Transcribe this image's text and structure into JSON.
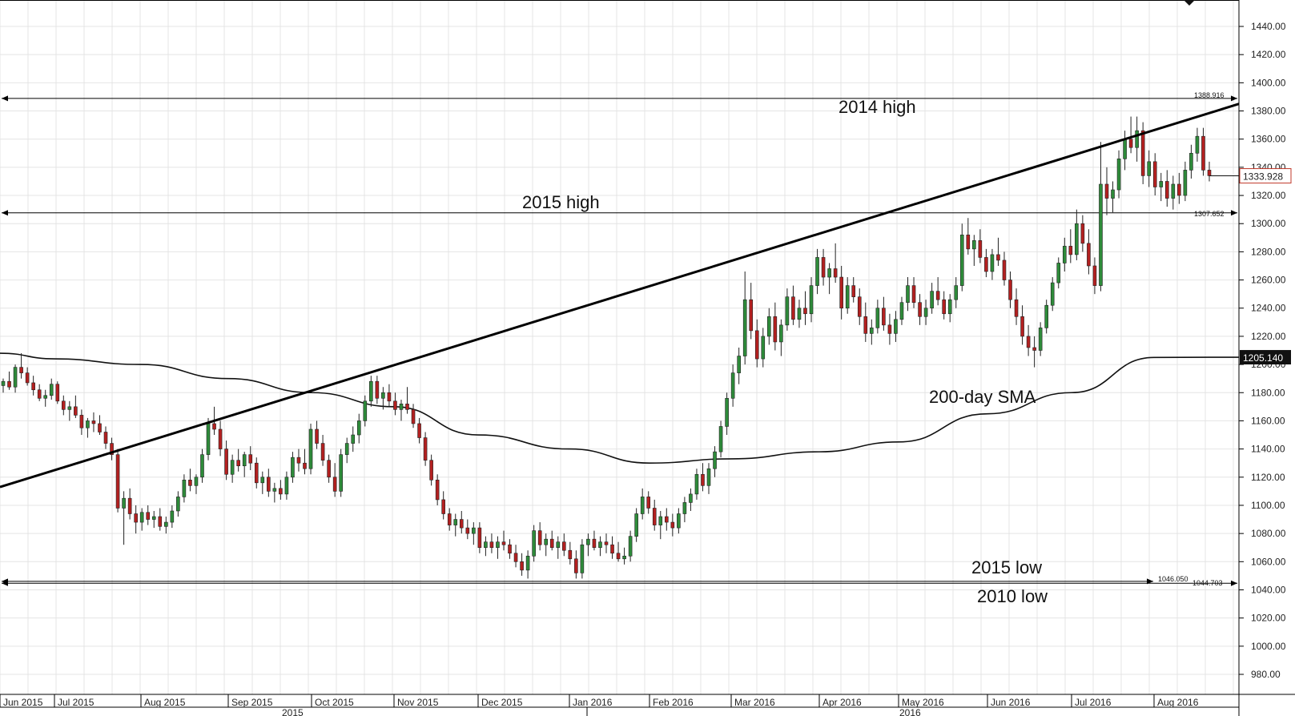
{
  "chart_data": {
    "type": "candlestick",
    "y_axis": {
      "range": [
        965,
        1455
      ],
      "ticks": [
        "980.00",
        "1000.00",
        "1020.00",
        "1040.00",
        "1060.00",
        "1080.00",
        "1100.00",
        "1120.00",
        "1140.00",
        "1160.00",
        "1180.00",
        "1200.00",
        "1220.00",
        "1240.00",
        "1260.00",
        "1280.00",
        "1300.00",
        "1320.00",
        "1340.00",
        "1360.00",
        "1380.00",
        "1400.00",
        "1420.00",
        "1440.00"
      ],
      "position": "right"
    },
    "x_axis": {
      "months": [
        "Jun 2015",
        "Jul 2015",
        "Aug 2015",
        "Sep 2015",
        "Oct 2015",
        "Nov 2015",
        "Dec 2015",
        "Jan 2016",
        "Feb 2016",
        "Mar 2016",
        "Apr 2016",
        "May 2016",
        "Jun 2016",
        "Jul 2016",
        "Aug 2016"
      ],
      "years": [
        "2015",
        "2016"
      ]
    },
    "grid": true,
    "horizontal_levels": [
      {
        "value": 1388.916,
        "label": "1388.916"
      },
      {
        "value": 1307.652,
        "label": "1307.652"
      },
      {
        "value": 1046.05,
        "label": "1046.050"
      },
      {
        "value": 1044.703,
        "label": "1044.703"
      }
    ],
    "last_price": {
      "value": 1333.928,
      "label": "1333.928"
    },
    "sma": {
      "name": "200-day SMA",
      "last_value": 1205.14,
      "last_label": "1205.140",
      "points": [
        [
          "Jun 2015",
          1208
        ],
        [
          "Jul 2015",
          1204
        ],
        [
          "Aug 2015",
          1200
        ],
        [
          "Sep 2015",
          1190
        ],
        [
          "Oct 2015",
          1180
        ],
        [
          "Nov 2015",
          1170
        ],
        [
          "Dec 2015",
          1150
        ],
        [
          "Jan 2016",
          1140
        ],
        [
          "Feb 2016",
          1130
        ],
        [
          "Mar 2016",
          1133
        ],
        [
          "Apr 2016",
          1138
        ],
        [
          "May 2016",
          1145
        ],
        [
          "Jun 2016",
          1165
        ],
        [
          "Jul 2016",
          1180
        ],
        [
          "Aug 2016",
          1205
        ]
      ]
    },
    "trendline": {
      "from": [
        "Jun 2015",
        1113
      ],
      "to": [
        "Aug 2016",
        1385
      ]
    },
    "annotations": [
      {
        "text": "2014 high"
      },
      {
        "text": "2015 high"
      },
      {
        "text": "200-day SMA"
      },
      {
        "text": "2015 low"
      },
      {
        "text": "2010 low"
      }
    ],
    "candles": [
      [
        1185,
        1190,
        1180,
        1188
      ],
      [
        1188,
        1195,
        1182,
        1184
      ],
      [
        1184,
        1200,
        1180,
        1198
      ],
      [
        1198,
        1208,
        1190,
        1194
      ],
      [
        1194,
        1198,
        1185,
        1187
      ],
      [
        1187,
        1192,
        1178,
        1182
      ],
      [
        1182,
        1186,
        1174,
        1176
      ],
      [
        1176,
        1182,
        1170,
        1178
      ],
      [
        1178,
        1190,
        1175,
        1186
      ],
      [
        1186,
        1188,
        1172,
        1174
      ],
      [
        1174,
        1178,
        1164,
        1168
      ],
      [
        1168,
        1174,
        1160,
        1170
      ],
      [
        1170,
        1178,
        1162,
        1164
      ],
      [
        1164,
        1168,
        1150,
        1155
      ],
      [
        1155,
        1162,
        1148,
        1160
      ],
      [
        1160,
        1166,
        1152,
        1158
      ],
      [
        1158,
        1164,
        1150,
        1152
      ],
      [
        1152,
        1156,
        1140,
        1144
      ],
      [
        1144,
        1148,
        1132,
        1136
      ],
      [
        1136,
        1140,
        1095,
        1098
      ],
      [
        1098,
        1110,
        1072,
        1105
      ],
      [
        1105,
        1112,
        1090,
        1094
      ],
      [
        1094,
        1100,
        1080,
        1088
      ],
      [
        1088,
        1098,
        1082,
        1095
      ],
      [
        1095,
        1100,
        1086,
        1090
      ],
      [
        1090,
        1096,
        1084,
        1092
      ],
      [
        1092,
        1098,
        1082,
        1085
      ],
      [
        1085,
        1092,
        1080,
        1088
      ],
      [
        1088,
        1100,
        1084,
        1096
      ],
      [
        1096,
        1110,
        1092,
        1106
      ],
      [
        1106,
        1122,
        1102,
        1118
      ],
      [
        1118,
        1126,
        1110,
        1114
      ],
      [
        1114,
        1122,
        1108,
        1120
      ],
      [
        1120,
        1140,
        1116,
        1136
      ],
      [
        1136,
        1162,
        1132,
        1158
      ],
      [
        1158,
        1170,
        1150,
        1154
      ],
      [
        1154,
        1160,
        1135,
        1140
      ],
      [
        1140,
        1146,
        1118,
        1122
      ],
      [
        1122,
        1136,
        1116,
        1132
      ],
      [
        1132,
        1140,
        1124,
        1128
      ],
      [
        1128,
        1138,
        1120,
        1136
      ],
      [
        1136,
        1142,
        1125,
        1130
      ],
      [
        1130,
        1134,
        1112,
        1116
      ],
      [
        1116,
        1124,
        1108,
        1120
      ],
      [
        1120,
        1126,
        1106,
        1110
      ],
      [
        1110,
        1116,
        1102,
        1112
      ],
      [
        1112,
        1118,
        1104,
        1108
      ],
      [
        1108,
        1124,
        1104,
        1120
      ],
      [
        1120,
        1138,
        1116,
        1134
      ],
      [
        1134,
        1140,
        1124,
        1130
      ],
      [
        1130,
        1140,
        1122,
        1126
      ],
      [
        1126,
        1158,
        1122,
        1154
      ],
      [
        1154,
        1160,
        1140,
        1144
      ],
      [
        1144,
        1150,
        1128,
        1132
      ],
      [
        1132,
        1136,
        1116,
        1120
      ],
      [
        1120,
        1130,
        1106,
        1110
      ],
      [
        1110,
        1140,
        1106,
        1136
      ],
      [
        1136,
        1148,
        1130,
        1144
      ],
      [
        1144,
        1156,
        1138,
        1150
      ],
      [
        1150,
        1165,
        1144,
        1160
      ],
      [
        1160,
        1178,
        1156,
        1174
      ],
      [
        1174,
        1192,
        1170,
        1188
      ],
      [
        1188,
        1192,
        1172,
        1176
      ],
      [
        1176,
        1184,
        1168,
        1180
      ],
      [
        1180,
        1186,
        1170,
        1174
      ],
      [
        1174,
        1180,
        1164,
        1168
      ],
      [
        1168,
        1175,
        1160,
        1172
      ],
      [
        1172,
        1184,
        1165,
        1168
      ],
      [
        1168,
        1172,
        1155,
        1158
      ],
      [
        1158,
        1162,
        1144,
        1148
      ],
      [
        1148,
        1152,
        1128,
        1132
      ],
      [
        1132,
        1136,
        1114,
        1118
      ],
      [
        1118,
        1122,
        1100,
        1104
      ],
      [
        1104,
        1110,
        1090,
        1094
      ],
      [
        1094,
        1098,
        1082,
        1086
      ],
      [
        1086,
        1094,
        1078,
        1090
      ],
      [
        1090,
        1096,
        1080,
        1084
      ],
      [
        1084,
        1090,
        1076,
        1080
      ],
      [
        1080,
        1088,
        1072,
        1084
      ],
      [
        1084,
        1088,
        1066,
        1070
      ],
      [
        1070,
        1078,
        1064,
        1074
      ],
      [
        1074,
        1080,
        1066,
        1070
      ],
      [
        1070,
        1078,
        1062,
        1074
      ],
      [
        1074,
        1082,
        1068,
        1072
      ],
      [
        1072,
        1076,
        1062,
        1066
      ],
      [
        1066,
        1072,
        1056,
        1060
      ],
      [
        1060,
        1066,
        1050,
        1054
      ],
      [
        1054,
        1068,
        1048,
        1064
      ],
      [
        1064,
        1086,
        1060,
        1082
      ],
      [
        1082,
        1088,
        1068,
        1072
      ],
      [
        1072,
        1080,
        1064,
        1076
      ],
      [
        1076,
        1082,
        1068,
        1070
      ],
      [
        1070,
        1078,
        1062,
        1074
      ],
      [
        1074,
        1080,
        1064,
        1068
      ],
      [
        1068,
        1074,
        1058,
        1062
      ],
      [
        1062,
        1068,
        1048,
        1052
      ],
      [
        1052,
        1076,
        1048,
        1072
      ],
      [
        1072,
        1080,
        1064,
        1076
      ],
      [
        1076,
        1082,
        1068,
        1070
      ],
      [
        1070,
        1078,
        1064,
        1074
      ],
      [
        1074,
        1080,
        1066,
        1072
      ],
      [
        1072,
        1078,
        1062,
        1066
      ],
      [
        1066,
        1074,
        1060,
        1062
      ],
      [
        1062,
        1070,
        1058,
        1064
      ],
      [
        1064,
        1082,
        1060,
        1078
      ],
      [
        1078,
        1098,
        1074,
        1094
      ],
      [
        1094,
        1112,
        1090,
        1106
      ],
      [
        1106,
        1110,
        1094,
        1098
      ],
      [
        1098,
        1104,
        1082,
        1086
      ],
      [
        1086,
        1096,
        1076,
        1092
      ],
      [
        1092,
        1098,
        1082,
        1088
      ],
      [
        1088,
        1094,
        1078,
        1084
      ],
      [
        1084,
        1098,
        1080,
        1094
      ],
      [
        1094,
        1106,
        1088,
        1102
      ],
      [
        1102,
        1112,
        1096,
        1108
      ],
      [
        1108,
        1126,
        1104,
        1122
      ],
      [
        1122,
        1130,
        1110,
        1114
      ],
      [
        1114,
        1130,
        1108,
        1126
      ],
      [
        1126,
        1142,
        1120,
        1138
      ],
      [
        1138,
        1160,
        1134,
        1156
      ],
      [
        1156,
        1180,
        1150,
        1176
      ],
      [
        1176,
        1200,
        1170,
        1194
      ],
      [
        1194,
        1212,
        1186,
        1206
      ],
      [
        1206,
        1266,
        1200,
        1246
      ],
      [
        1246,
        1258,
        1218,
        1224
      ],
      [
        1224,
        1232,
        1198,
        1204
      ],
      [
        1204,
        1226,
        1198,
        1220
      ],
      [
        1220,
        1240,
        1214,
        1234
      ],
      [
        1234,
        1244,
        1210,
        1216
      ],
      [
        1216,
        1232,
        1206,
        1228
      ],
      [
        1228,
        1254,
        1224,
        1248
      ],
      [
        1248,
        1256,
        1228,
        1232
      ],
      [
        1232,
        1246,
        1226,
        1240
      ],
      [
        1240,
        1252,
        1228,
        1236
      ],
      [
        1236,
        1262,
        1230,
        1256
      ],
      [
        1256,
        1282,
        1250,
        1276
      ],
      [
        1276,
        1282,
        1256,
        1262
      ],
      [
        1262,
        1272,
        1250,
        1268
      ],
      [
        1268,
        1286,
        1258,
        1262
      ],
      [
        1262,
        1270,
        1232,
        1240
      ],
      [
        1240,
        1262,
        1236,
        1256
      ],
      [
        1256,
        1262,
        1244,
        1248
      ],
      [
        1248,
        1254,
        1228,
        1234
      ],
      [
        1234,
        1244,
        1216,
        1222
      ],
      [
        1222,
        1232,
        1214,
        1226
      ],
      [
        1226,
        1246,
        1222,
        1240
      ],
      [
        1240,
        1248,
        1224,
        1228
      ],
      [
        1228,
        1236,
        1214,
        1222
      ],
      [
        1222,
        1238,
        1216,
        1232
      ],
      [
        1232,
        1248,
        1228,
        1244
      ],
      [
        1244,
        1262,
        1238,
        1256
      ],
      [
        1256,
        1262,
        1240,
        1244
      ],
      [
        1244,
        1250,
        1228,
        1234
      ],
      [
        1234,
        1246,
        1228,
        1240
      ],
      [
        1240,
        1258,
        1236,
        1252
      ],
      [
        1252,
        1262,
        1242,
        1246
      ],
      [
        1246,
        1252,
        1232,
        1236
      ],
      [
        1236,
        1250,
        1230,
        1246
      ],
      [
        1246,
        1262,
        1240,
        1256
      ],
      [
        1256,
        1300,
        1252,
        1292
      ],
      [
        1292,
        1304,
        1278,
        1282
      ],
      [
        1282,
        1292,
        1270,
        1288
      ],
      [
        1288,
        1296,
        1272,
        1276
      ],
      [
        1276,
        1282,
        1262,
        1266
      ],
      [
        1266,
        1282,
        1260,
        1278
      ],
      [
        1278,
        1290,
        1270,
        1274
      ],
      [
        1274,
        1280,
        1256,
        1260
      ],
      [
        1260,
        1266,
        1240,
        1246
      ],
      [
        1246,
        1254,
        1228,
        1234
      ],
      [
        1234,
        1242,
        1214,
        1220
      ],
      [
        1220,
        1228,
        1206,
        1212
      ],
      [
        1212,
        1220,
        1198,
        1210
      ],
      [
        1210,
        1230,
        1206,
        1226
      ],
      [
        1226,
        1246,
        1222,
        1242
      ],
      [
        1242,
        1262,
        1238,
        1258
      ],
      [
        1258,
        1276,
        1254,
        1272
      ],
      [
        1272,
        1290,
        1266,
        1284
      ],
      [
        1284,
        1296,
        1272,
        1278
      ],
      [
        1278,
        1310,
        1274,
        1300
      ],
      [
        1300,
        1306,
        1280,
        1286
      ],
      [
        1286,
        1296,
        1264,
        1270
      ],
      [
        1270,
        1276,
        1250,
        1256
      ],
      [
        1256,
        1358,
        1252,
        1328
      ],
      [
        1328,
        1340,
        1306,
        1318
      ],
      [
        1318,
        1330,
        1308,
        1324
      ],
      [
        1324,
        1352,
        1318,
        1346
      ],
      [
        1346,
        1366,
        1338,
        1360
      ],
      [
        1360,
        1376,
        1350,
        1354
      ],
      [
        1354,
        1376,
        1344,
        1366
      ],
      [
        1366,
        1372,
        1328,
        1334
      ],
      [
        1334,
        1352,
        1326,
        1344
      ],
      [
        1344,
        1350,
        1320,
        1326
      ],
      [
        1326,
        1336,
        1316,
        1330
      ],
      [
        1330,
        1338,
        1312,
        1318
      ],
      [
        1318,
        1334,
        1310,
        1328
      ],
      [
        1328,
        1336,
        1314,
        1320
      ],
      [
        1320,
        1344,
        1316,
        1338
      ],
      [
        1338,
        1356,
        1332,
        1350
      ],
      [
        1350,
        1368,
        1344,
        1362
      ],
      [
        1362,
        1368,
        1334,
        1338
      ],
      [
        1338,
        1344,
        1330,
        1334
      ]
    ]
  }
}
